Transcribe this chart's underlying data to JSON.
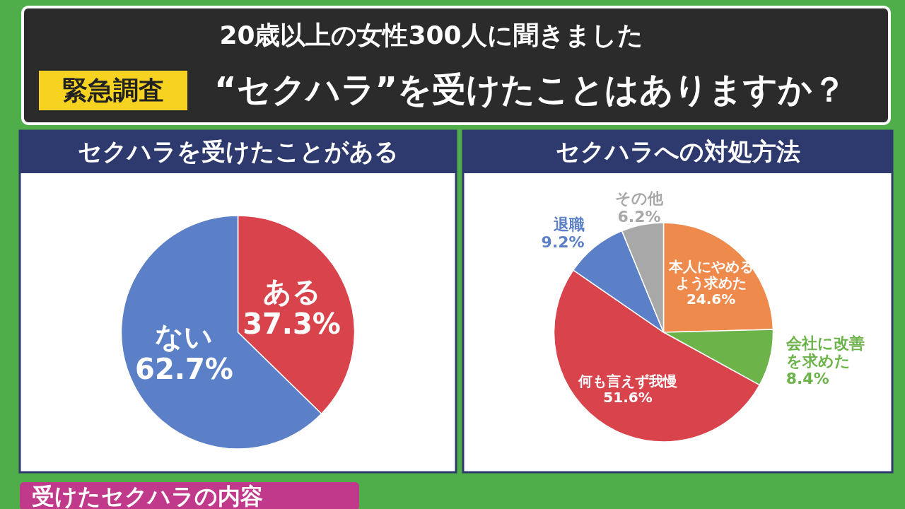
{
  "chart_data": [
    {
      "type": "other",
      "title": "“セクハラ”を受けたことはありますか？",
      "subtitle": "20歳以上の女性300人に聞きました",
      "annotations": [
        "緊急調査"
      ]
    },
    {
      "type": "pie",
      "title": "セクハラを受けたことがある",
      "categories": [
        "ある",
        "ない"
      ],
      "values": [
        37.3,
        62.7
      ],
      "value_labels": [
        "37.3%",
        "62.7%"
      ],
      "colors": [
        "#d8434c",
        "#5b80c8"
      ]
    },
    {
      "type": "pie",
      "title": "セクハラへの対処方法",
      "categories": [
        "本人にやめるよう求めた",
        "会社に改善を求めた",
        "何も言えず我慢",
        "退職",
        "その他"
      ],
      "values": [
        24.6,
        8.4,
        51.6,
        9.2,
        6.2
      ],
      "value_labels": [
        "24.6%",
        "8.4%",
        "51.6%",
        "9.2%",
        "6.2%"
      ],
      "colors": [
        "#ee8a4c",
        "#6cb44a",
        "#d8434c",
        "#5b80c8",
        "#a8a8a8"
      ]
    },
    {
      "type": "other",
      "title": "受けたセクハラの内容"
    }
  ]
}
